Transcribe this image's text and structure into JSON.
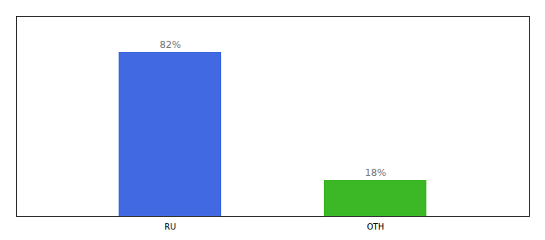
{
  "chart_data": {
    "type": "bar",
    "categories": [
      "RU",
      "OTH"
    ],
    "values": [
      82,
      18
    ],
    "value_labels": [
      "82%",
      "18%"
    ],
    "colors": [
      "#4169E1",
      "#3CB827"
    ],
    "ylim": [
      0,
      100
    ],
    "yticks": [],
    "grid": false,
    "data_labels": true,
    "tick_labels": "x"
  }
}
